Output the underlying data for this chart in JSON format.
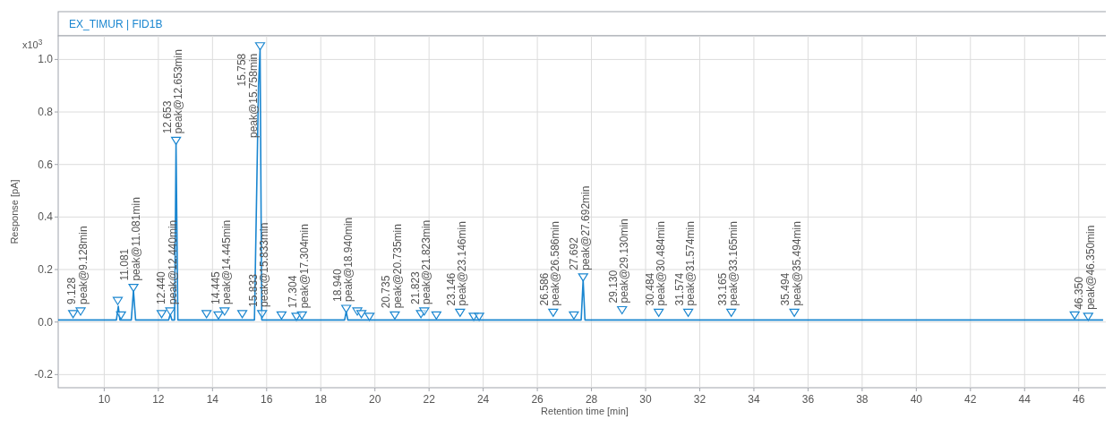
{
  "chart_data": {
    "type": "line",
    "title": "EX_TIMUR | FID1B",
    "xlabel": "Retention time [min]",
    "ylabel": "Response [pA]",
    "xlim": [
      8.3,
      47.2
    ],
    "xticks": [
      10,
      12,
      14,
      16,
      18,
      20,
      22,
      24,
      26,
      28,
      30,
      32,
      34,
      36,
      38,
      40,
      42,
      44,
      46
    ],
    "ylim": [
      -0.25,
      1.09
    ],
    "yticks": [
      -0.2,
      {
        "value": 0,
        "label": "0.0"
      },
      0.2,
      0.4,
      0.6,
      0.8,
      {
        "value": 1,
        "label": "1.0"
      }
    ],
    "grid": true,
    "series": [
      {
        "color": "#1a86d0",
        "x": [
          8.3,
          9.0,
          10.0,
          10.45,
          10.52,
          10.58,
          11.0,
          11.08,
          11.16,
          12.0,
          12.38,
          12.44,
          12.5,
          12.6,
          12.653,
          12.72,
          14.0,
          15.55,
          15.7,
          15.758,
          15.82,
          17.0,
          18.88,
          18.94,
          19.0,
          22.0,
          27.62,
          27.692,
          27.76,
          30.0,
          40.0,
          46.9
        ],
        "values": [
          0.008,
          0.008,
          0.008,
          0.008,
          0.06,
          0.008,
          0.008,
          0.12,
          0.008,
          0.008,
          0.008,
          0.03,
          0.008,
          0.008,
          0.68,
          0.008,
          0.008,
          0.008,
          0.9,
          1.04,
          0.008,
          0.008,
          0.008,
          0.04,
          0.008,
          0.008,
          0.008,
          0.16,
          0.008,
          0.008,
          0.008,
          0.008
        ]
      },
      {
        "type": "scatter",
        "marker": "triangle",
        "color": "#1a86d0",
        "x": [
          8.85,
          9.128,
          10.5,
          10.62,
          11.081,
          12.12,
          12.44,
          12.653,
          13.78,
          14.22,
          14.445,
          15.1,
          15.758,
          15.833,
          16.55,
          17.1,
          17.304,
          18.94,
          19.35,
          19.5,
          19.8,
          20.735,
          21.7,
          21.823,
          22.27,
          23.146,
          23.65,
          23.85,
          26.586,
          27.35,
          27.692,
          29.13,
          30.484,
          31.574,
          33.165,
          35.494,
          45.85,
          46.35
        ],
        "values": [
          0.03,
          0.04,
          0.08,
          0.025,
          0.13,
          0.03,
          0.04,
          0.69,
          0.03,
          0.025,
          0.04,
          0.03,
          1.05,
          0.03,
          0.025,
          0.02,
          0.025,
          0.05,
          0.04,
          0.03,
          0.02,
          0.025,
          0.03,
          0.04,
          0.025,
          0.035,
          0.02,
          0.02,
          0.035,
          0.025,
          0.17,
          0.045,
          0.035,
          0.035,
          0.035,
          0.035,
          0.025,
          0.02
        ]
      }
    ],
    "annotations": [
      "x10$^{3}$",
      {
        "text": "9.128\npeak@9.128min",
        "x": 9.128,
        "y": 0.04
      },
      {
        "text": "11.081\npeak@11.081min",
        "x": 11.081,
        "y": 0.13
      },
      {
        "text": "12.440\npeak@12.440min",
        "x": 12.44,
        "y": 0.04
      },
      {
        "text": "12.653\npeak@12.653min",
        "x": 12.653,
        "y": 0.69
      },
      {
        "text": "14.445\npeak@14.445min",
        "x": 14.445,
        "y": 0.04
      },
      {
        "text": "15.758\npeak@15.758min",
        "x": 15.758,
        "y": 1.05
      },
      {
        "text": "15.833\npeak@15.833min",
        "x": 15.833,
        "y": 0.03
      },
      {
        "text": "17.304\npeak@17.304min",
        "x": 17.304,
        "y": 0.025
      },
      {
        "text": "18.940\npeak@18.940min",
        "x": 18.94,
        "y": 0.05
      },
      {
        "text": "20.735\npeak@20.735min",
        "x": 20.735,
        "y": 0.025
      },
      {
        "text": "21.823\npeak@21.823min",
        "x": 21.823,
        "y": 0.04
      },
      {
        "text": "23.146\npeak@23.146min",
        "x": 23.146,
        "y": 0.035
      },
      {
        "text": "26.586\npeak@26.586min",
        "x": 26.586,
        "y": 0.035
      },
      {
        "text": "27.692\npeak@27.692min",
        "x": 27.692,
        "y": 0.17
      },
      {
        "text": "29.130\npeak@29.130min",
        "x": 29.13,
        "y": 0.045
      },
      {
        "text": "30.484\npeak@30.484min",
        "x": 30.484,
        "y": 0.035
      },
      {
        "text": "31.574\npeak@31.574min",
        "x": 31.574,
        "y": 0.035
      },
      {
        "text": "33.165\npeak@33.165min",
        "x": 33.165,
        "y": 0.035
      },
      {
        "text": "35.494\npeak@35.494min",
        "x": 35.494,
        "y": 0.035
      },
      {
        "text": "46.350\npeak@46.350min",
        "x": 46.35,
        "y": 0.02
      }
    ]
  }
}
